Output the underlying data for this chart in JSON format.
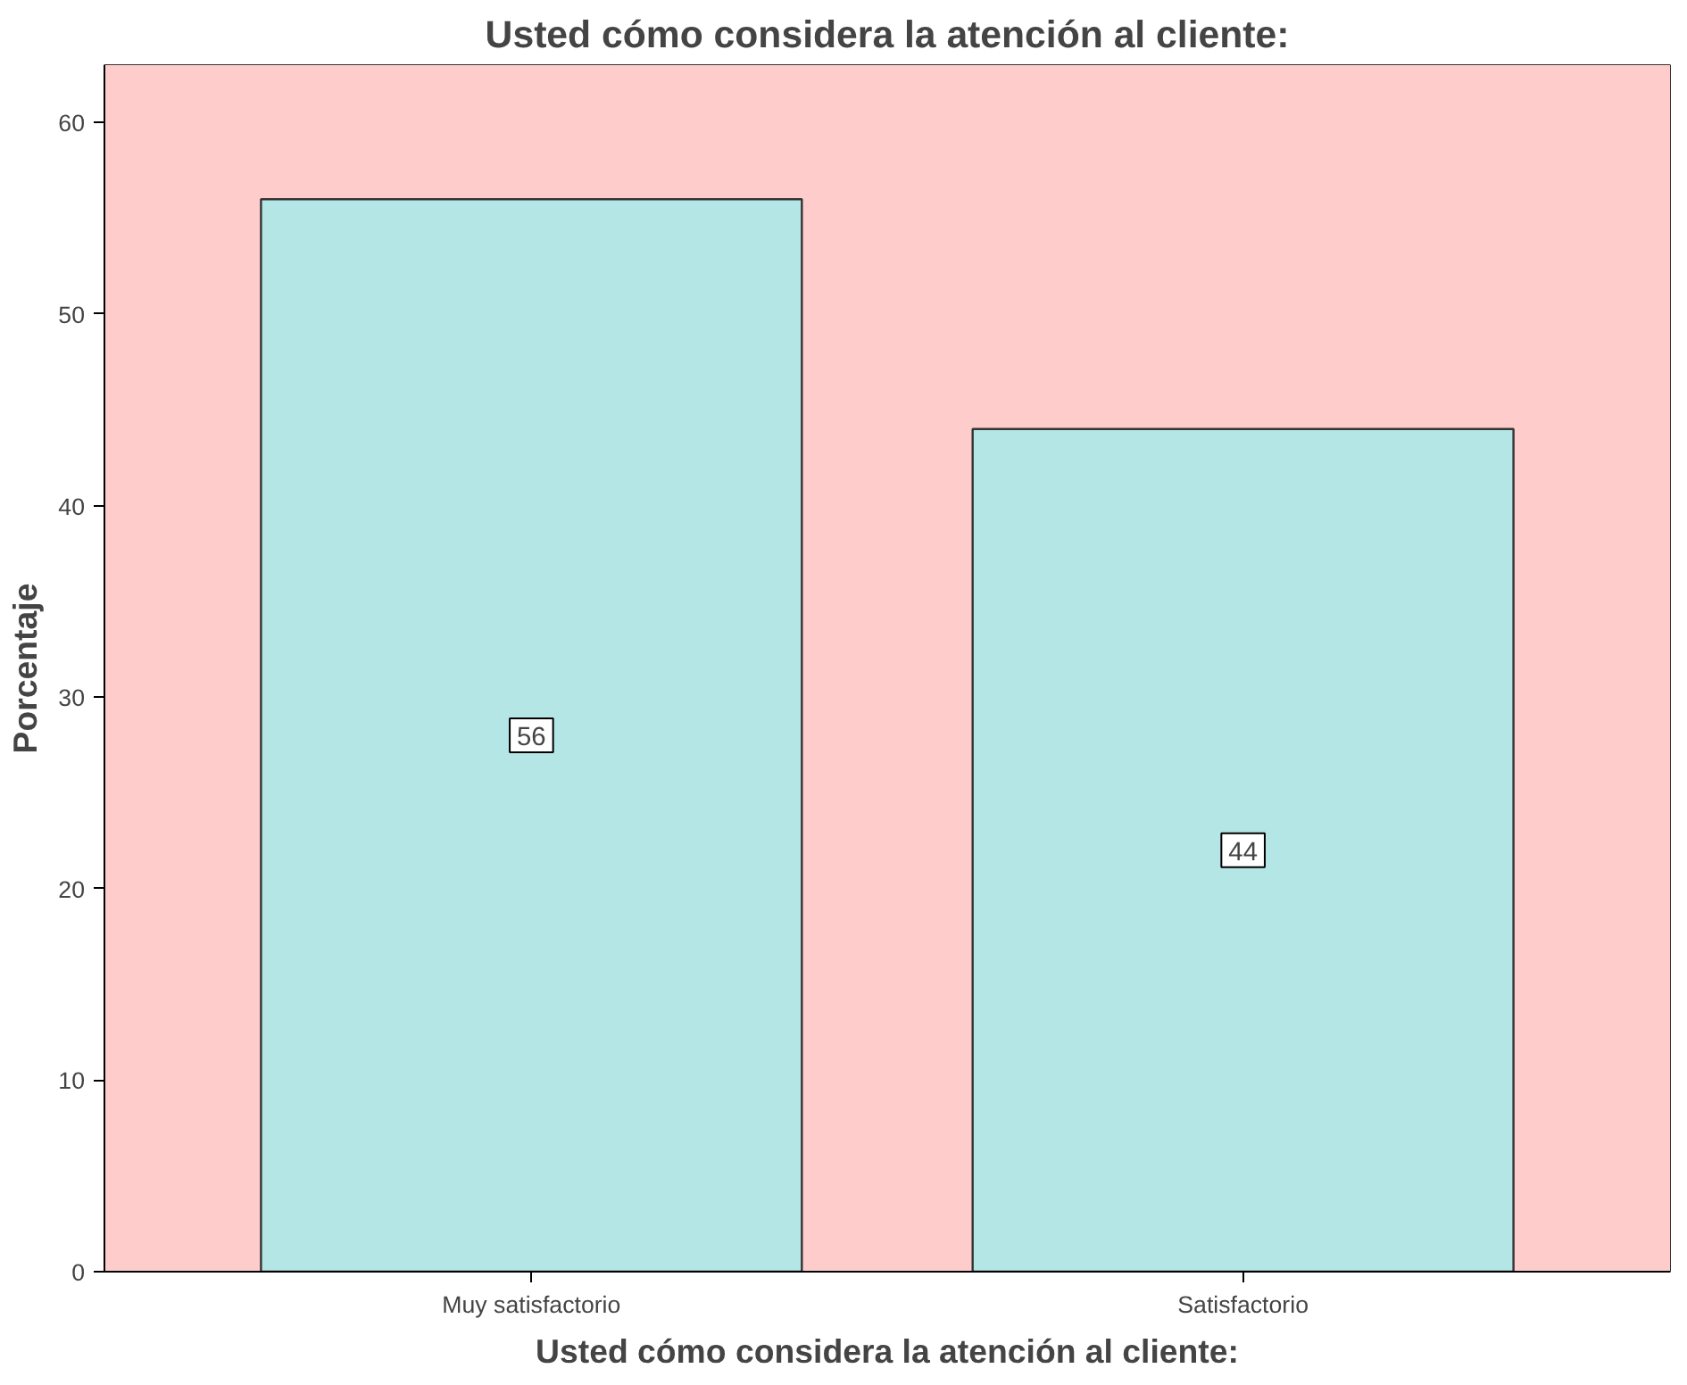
{
  "chart_data": {
    "type": "bar",
    "title": "Usted cómo considera la atención al cliente:",
    "xlabel": "Usted cómo considera la atención al cliente:",
    "ylabel": "Porcentaje",
    "categories": [
      "Muy satisfactorio",
      "Satisfactorio"
    ],
    "values": [
      56,
      44
    ],
    "color": "#b4e6e6",
    "ylim": [
      0,
      63
    ],
    "yticks": [
      0,
      10,
      20,
      30,
      40,
      50,
      60
    ],
    "bands": [
      {
        "axis": "y",
        "from": 0,
        "to": 63,
        "color": "#ffcccc"
      }
    ],
    "data_labels": true
  }
}
